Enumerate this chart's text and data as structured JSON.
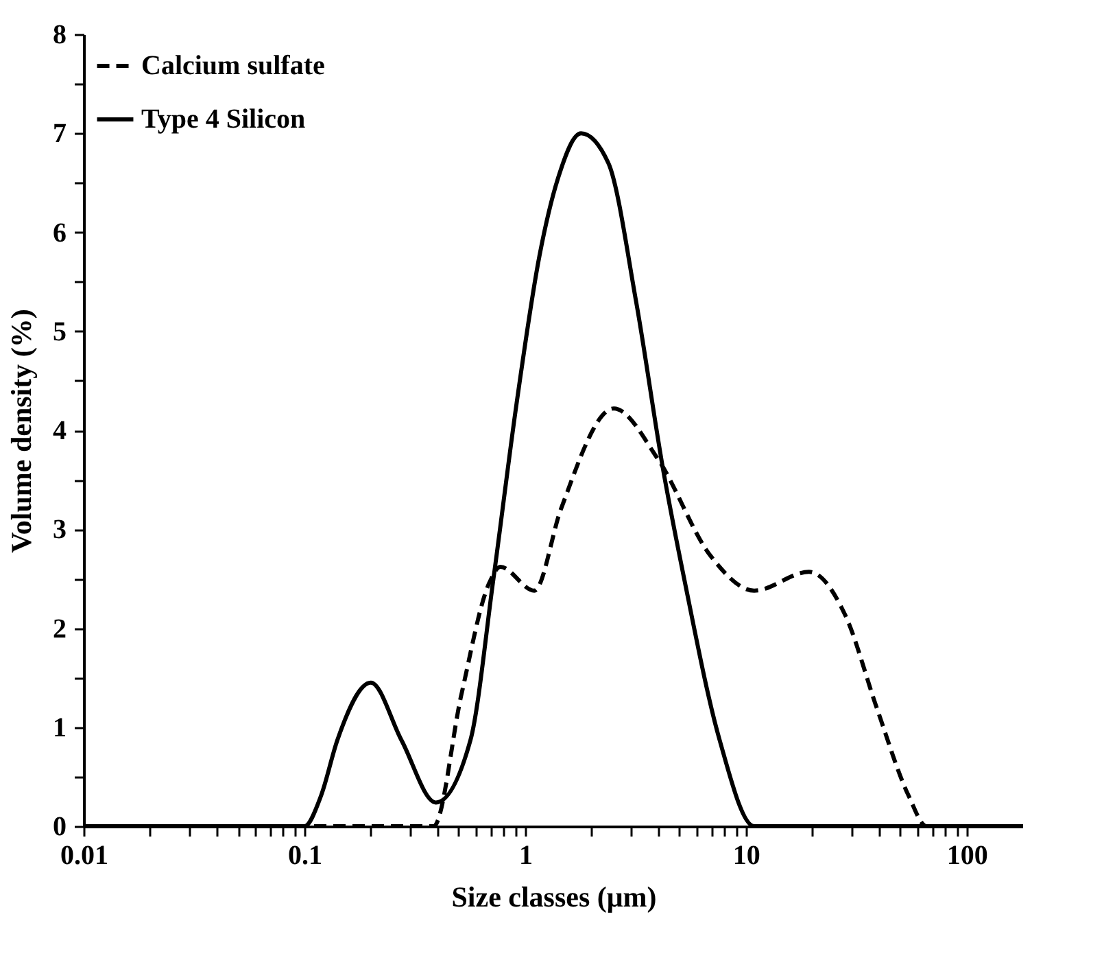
{
  "chart_data": {
    "type": "line",
    "xlabel": "Size classes (μm)",
    "ylabel": "Volume density (%)",
    "log": "x",
    "xlim": [
      0.01,
      180
    ],
    "xticks": [
      0.01,
      {
        "value": 0.02,
        "label": null
      },
      {
        "value": 0.03,
        "label": null
      },
      {
        "value": 0.04,
        "label": null
      },
      {
        "value": 0.05,
        "label": null
      },
      {
        "value": 0.06,
        "label": null
      },
      {
        "value": 0.07,
        "label": null
      },
      {
        "value": 0.08,
        "label": null
      },
      {
        "value": 0.09,
        "label": null
      },
      0.1,
      {
        "value": 0.2,
        "label": null
      },
      {
        "value": 0.3,
        "label": null
      },
      {
        "value": 0.4,
        "label": null
      },
      {
        "value": 0.5,
        "label": null
      },
      {
        "value": 0.6,
        "label": null
      },
      {
        "value": 0.7,
        "label": null
      },
      {
        "value": 0.8,
        "label": null
      },
      {
        "value": 0.9,
        "label": null
      },
      1,
      {
        "value": 2,
        "label": null
      },
      {
        "value": 3,
        "label": null
      },
      {
        "value": 4,
        "label": null
      },
      {
        "value": 5,
        "label": null
      },
      {
        "value": 6,
        "label": null
      },
      {
        "value": 7,
        "label": null
      },
      {
        "value": 8,
        "label": null
      },
      {
        "value": 9,
        "label": null
      },
      10,
      {
        "value": 20,
        "label": null
      },
      {
        "value": 30,
        "label": null
      },
      {
        "value": 40,
        "label": null
      },
      {
        "value": 50,
        "label": null
      },
      {
        "value": 60,
        "label": null
      },
      {
        "value": 70,
        "label": null
      },
      {
        "value": 80,
        "label": null
      },
      {
        "value": 90,
        "label": null
      },
      100
    ],
    "ylim": [
      0,
      8
    ],
    "yticks": [
      0,
      {
        "value": 0.5,
        "label": null
      },
      1,
      {
        "value": 1.5,
        "label": null
      },
      2,
      {
        "value": 2.5,
        "label": null
      },
      3,
      {
        "value": 3.5,
        "label": null
      },
      4,
      {
        "value": 4.5,
        "label": null
      },
      5,
      {
        "value": 5.5,
        "label": null
      },
      6,
      {
        "value": 6.5,
        "label": null
      },
      7,
      {
        "value": 7.5,
        "label": null
      },
      8
    ],
    "grid": false,
    "legend": "top left",
    "marker": "none",
    "series": [
      {
        "name": "Calcium sulfate",
        "color": "#000000",
        "line_style": "dashed",
        "x": [
          0.01,
          0.385,
          0.514,
          0.685,
          0.772,
          1.1,
          1.45,
          2.52,
          3.99,
          6.92,
          10.9,
          19.3,
          28.2,
          39.2,
          54.5,
          65.8,
          180
        ],
        "values": [
          0,
          0,
          1.33,
          2.45,
          2.62,
          2.38,
          3.2,
          4.22,
          3.71,
          2.73,
          2.38,
          2.57,
          2.13,
          1.19,
          0.31,
          0,
          0
        ]
      },
      {
        "name": "Type 4 Silicon",
        "color": "#000000",
        "line_style": "solid",
        "x": [
          0.01,
          0.1,
          0.119,
          0.141,
          0.2,
          0.275,
          0.394,
          0.565,
          0.718,
          0.914,
          1.16,
          1.41,
          1.79,
          2.38,
          3.18,
          4.24,
          5.25,
          7.6,
          10.9,
          180
        ],
        "values": [
          0,
          0,
          0.31,
          0.87,
          1.45,
          0.87,
          0.24,
          0.87,
          2.5,
          4.27,
          5.76,
          6.55,
          7.0,
          6.7,
          5.3,
          3.57,
          2.5,
          0.87,
          0,
          0
        ]
      }
    ]
  }
}
